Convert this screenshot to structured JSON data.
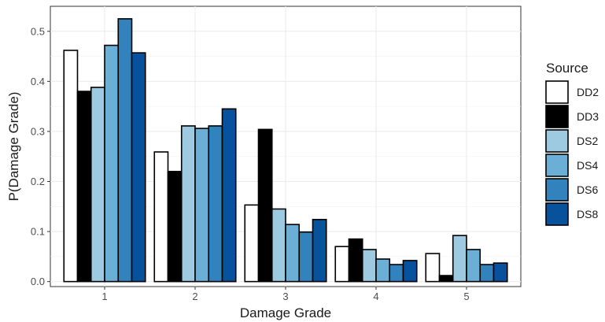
{
  "chart_data": {
    "type": "bar",
    "xlabel": "Damage Grade",
    "ylabel": "P(Damage Grade)",
    "categories": [
      "1",
      "2",
      "3",
      "4",
      "5"
    ],
    "ylim": [
      -0.01,
      0.55
    ],
    "yticks": [
      0.0,
      0.1,
      0.2,
      0.3,
      0.4,
      0.5
    ],
    "ytick_labels": [
      "0.0",
      "0.1",
      "0.2",
      "0.3",
      "0.4",
      "0.5"
    ],
    "grid": true,
    "legend": {
      "title": "Source",
      "position": "right"
    },
    "series": [
      {
        "name": "DD2",
        "color": "#ffffff",
        "values": [
          0.462,
          0.259,
          0.153,
          0.07,
          0.056
        ]
      },
      {
        "name": "DD3",
        "color": "#000000",
        "values": [
          0.38,
          0.22,
          0.304,
          0.085,
          0.012
        ]
      },
      {
        "name": "DS2",
        "color": "#9ecae1",
        "values": [
          0.388,
          0.311,
          0.145,
          0.064,
          0.092
        ]
      },
      {
        "name": "DS4",
        "color": "#6baed6",
        "values": [
          0.472,
          0.306,
          0.114,
          0.045,
          0.064
        ]
      },
      {
        "name": "DS6",
        "color": "#3182bd",
        "values": [
          0.525,
          0.311,
          0.099,
          0.034,
          0.034
        ]
      },
      {
        "name": "DS8",
        "color": "#08519c",
        "values": [
          0.457,
          0.345,
          0.124,
          0.042,
          0.037
        ]
      }
    ]
  }
}
